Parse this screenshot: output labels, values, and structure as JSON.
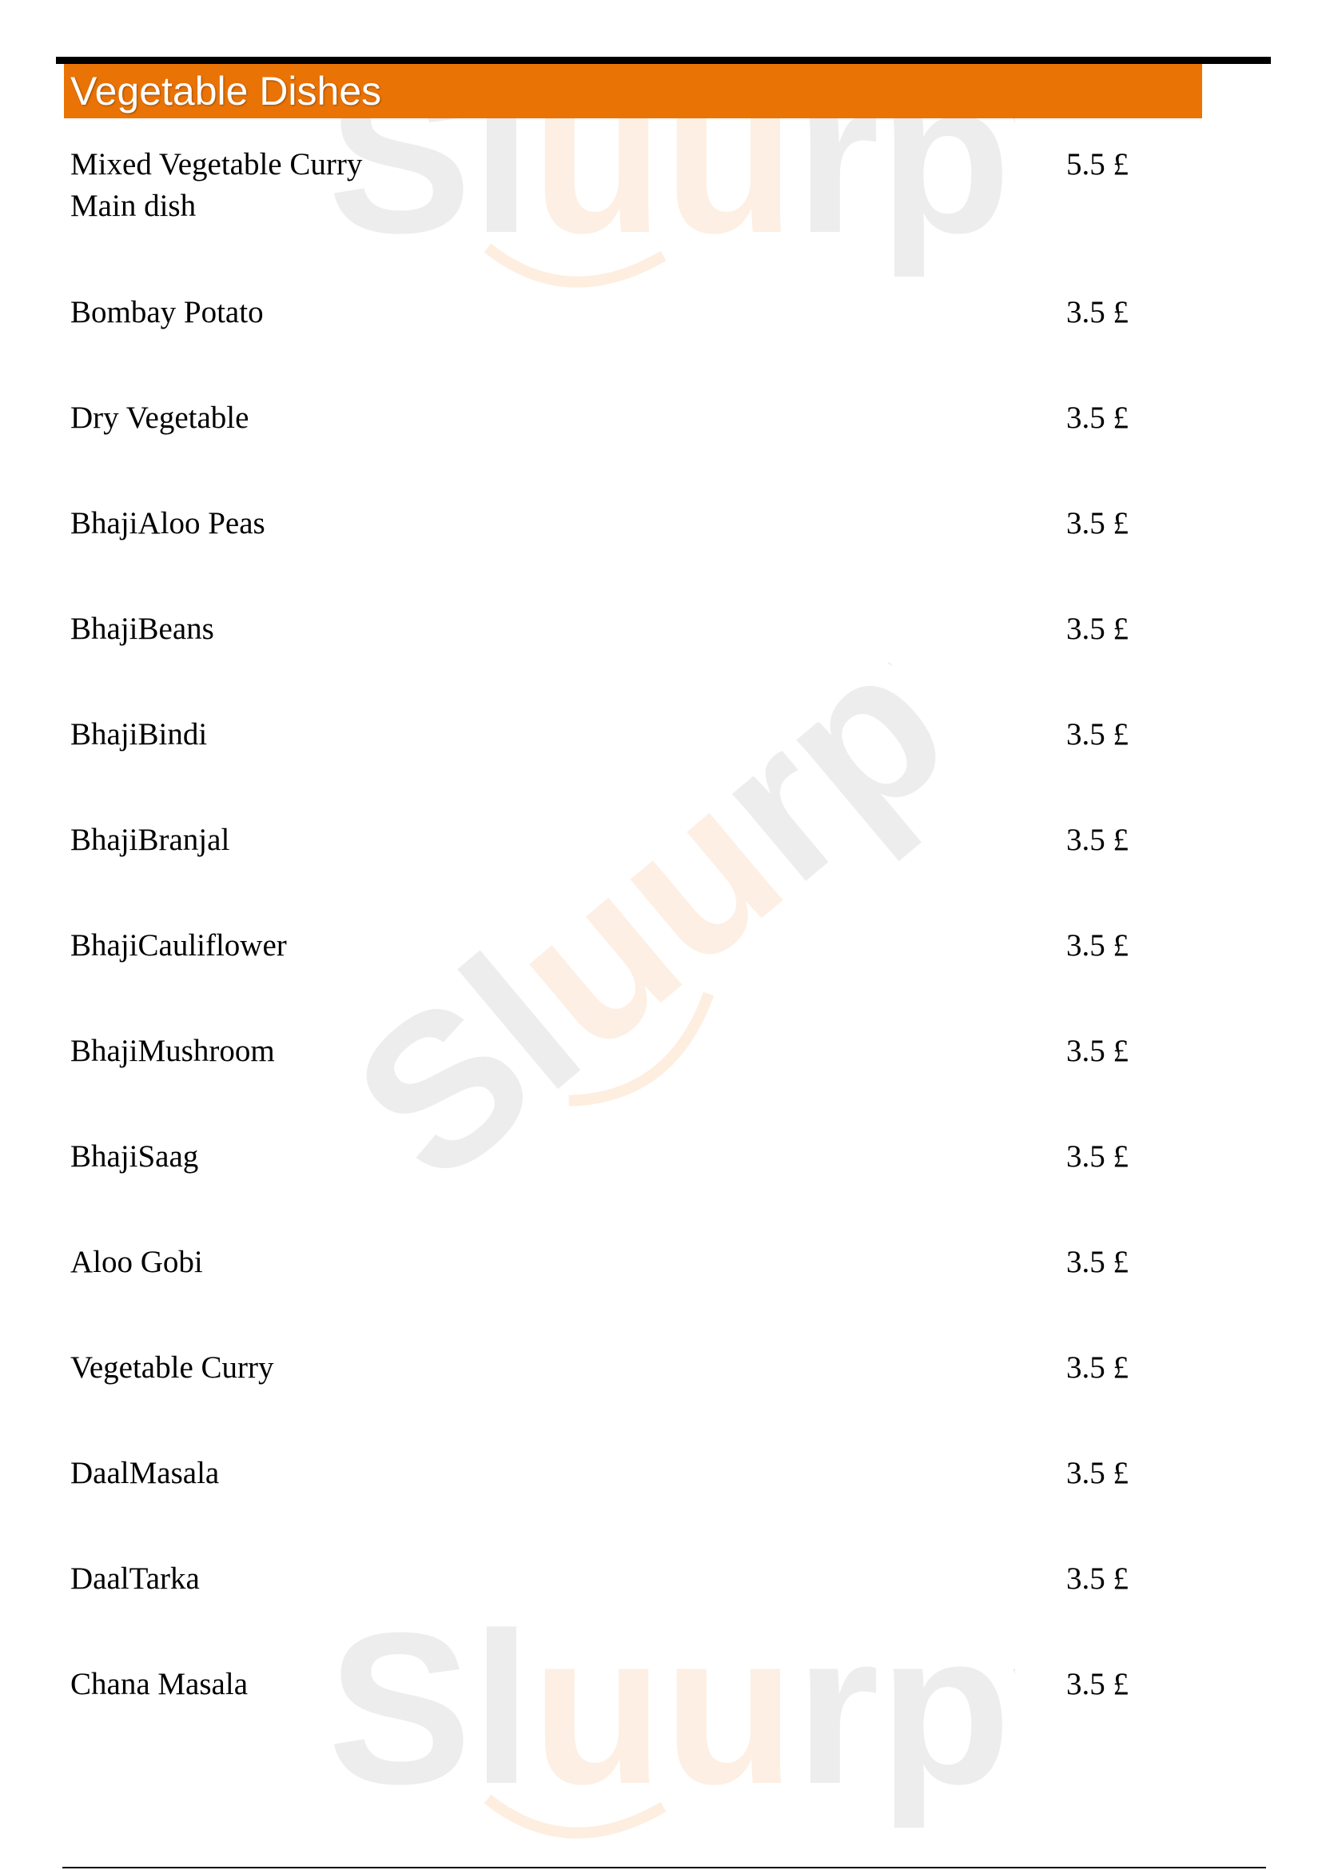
{
  "section": {
    "title": "Vegetable Dishes"
  },
  "watermark": {
    "text": "Sluurpy",
    "colors": {
      "grey": "#ececec",
      "orange": "#fdeee0"
    }
  },
  "colors": {
    "header_bg": "#ea7306",
    "header_text": "#ffffff"
  },
  "items": [
    {
      "name": "Mixed Vegetable Curry",
      "description": "Main dish",
      "price": "5.5 £"
    },
    {
      "name": "Bombay Potato",
      "price": "3.5 £"
    },
    {
      "name": "Dry Vegetable",
      "price": "3.5 £"
    },
    {
      "name": "BhajiAloo Peas",
      "price": "3.5 £"
    },
    {
      "name": "BhajiBeans",
      "price": "3.5 £"
    },
    {
      "name": "BhajiBindi",
      "price": "3.5 £"
    },
    {
      "name": "BhajiBranjal",
      "price": "3.5 £"
    },
    {
      "name": "BhajiCauliflower",
      "price": "3.5 £"
    },
    {
      "name": "BhajiMushroom",
      "price": "3.5 £"
    },
    {
      "name": "BhajiSaag",
      "price": "3.5 £"
    },
    {
      "name": "Aloo Gobi",
      "price": "3.5 £"
    },
    {
      "name": "Vegetable Curry",
      "price": "3.5 £"
    },
    {
      "name": "DaalMasala",
      "price": "3.5 £"
    },
    {
      "name": "DaalTarka",
      "price": "3.5 £"
    },
    {
      "name": "Chana Masala",
      "price": "3.5 £"
    }
  ]
}
